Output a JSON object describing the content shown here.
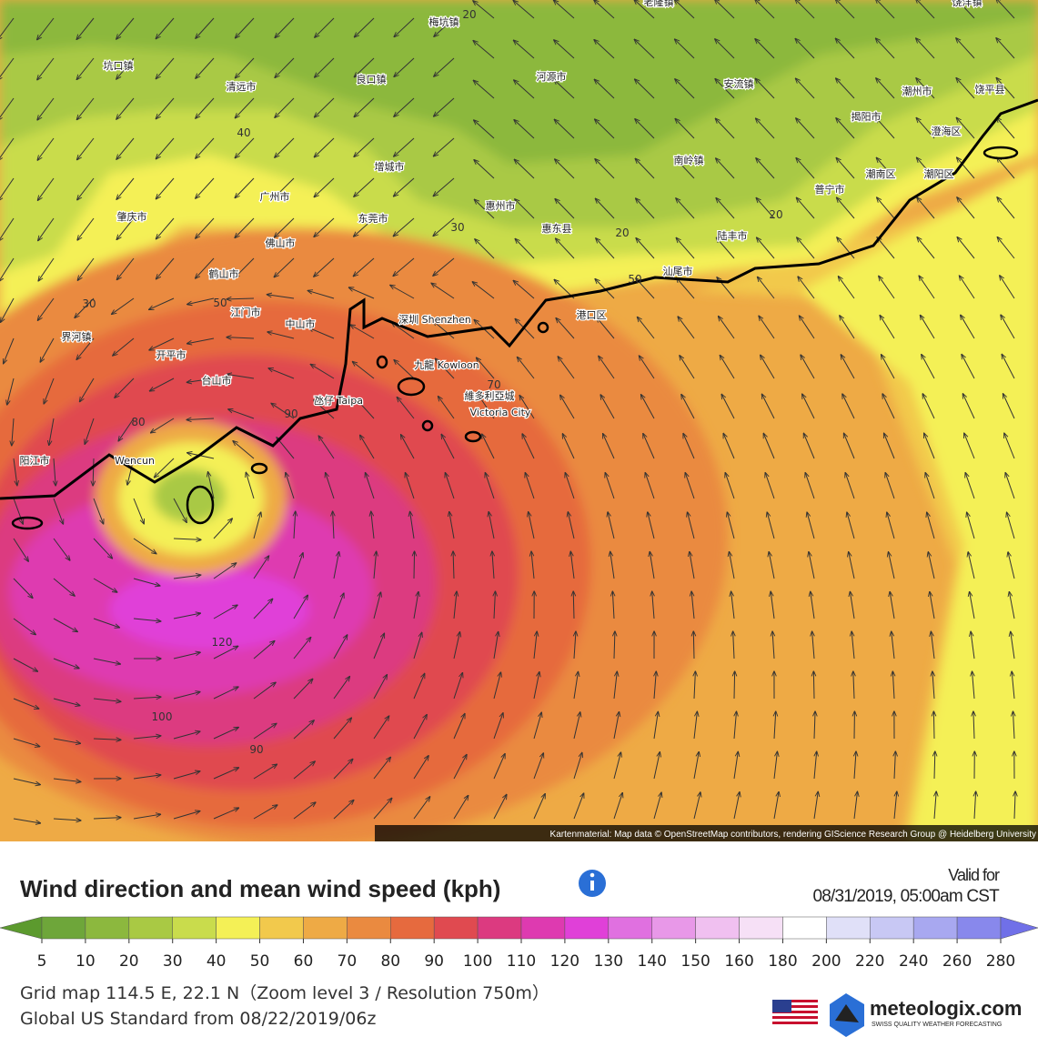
{
  "map": {
    "places": [
      "梅坑镇",
      "老隆镇",
      "饶洋镇",
      "坑口镇",
      "清远市",
      "良口镇",
      "河源市",
      "安流镇",
      "潮州市",
      "饶平县",
      "揭阳市",
      "澄海区",
      "增城市",
      "南岭镇",
      "潮南区",
      "普宁市",
      "潮阳区",
      "广州市",
      "肇庆市",
      "东莞市",
      "惠州市",
      "惠东县",
      "佛山市",
      "陆丰市",
      "鹤山市",
      "汕尾市",
      "江门市",
      "中山市",
      "深圳 Shenzhen",
      "港口区",
      "界河镇",
      "开平市",
      "九龍 Kowloon",
      "台山市",
      "氹仔 Taipa",
      "維多利亞城",
      "Victoria City",
      "阳江市",
      "Wencun"
    ],
    "contour_labels": [
      20,
      40,
      30,
      20,
      20,
      30,
      50,
      50,
      80,
      90,
      70,
      120,
      100,
      90
    ],
    "attribution": "Kartenmaterial: Map data © OpenStreetMap contributors, rendering GIScience Research Group @ Heidelberg University"
  },
  "legend": {
    "title": "Wind direction and mean wind speed (kph)",
    "ticks": [
      5,
      10,
      20,
      30,
      40,
      50,
      60,
      70,
      80,
      90,
      100,
      110,
      120,
      130,
      140,
      150,
      160,
      180,
      200,
      220,
      240,
      260,
      280
    ],
    "colors": [
      "#5c9a2e",
      "#6ea63a",
      "#8cb83e",
      "#a9c944",
      "#c9dc4c",
      "#f4f056",
      "#f2c94c",
      "#eeaa45",
      "#ea8a40",
      "#e66a3e",
      "#e04a50",
      "#dc3a80",
      "#de3ab0",
      "#e040d8",
      "#e070e0",
      "#e898e8",
      "#f0c0f0",
      "#f6e0f6",
      "#ffffff",
      "#e0e0f8",
      "#c8c8f4",
      "#a8a8f0",
      "#8888ec",
      "#7070e8"
    ]
  },
  "valid": {
    "label": "Valid for",
    "time": "08/31/2019, 05:00am CST"
  },
  "footer": {
    "grid": "Grid map 114.5 E, 22.1 N（Zoom level 3 / Resolution 750m）",
    "model": "Global US Standard from 08/22/2019/06z",
    "brand": "meteologix.com",
    "tagline": "SWISS QUALITY WEATHER FORECASTING"
  }
}
